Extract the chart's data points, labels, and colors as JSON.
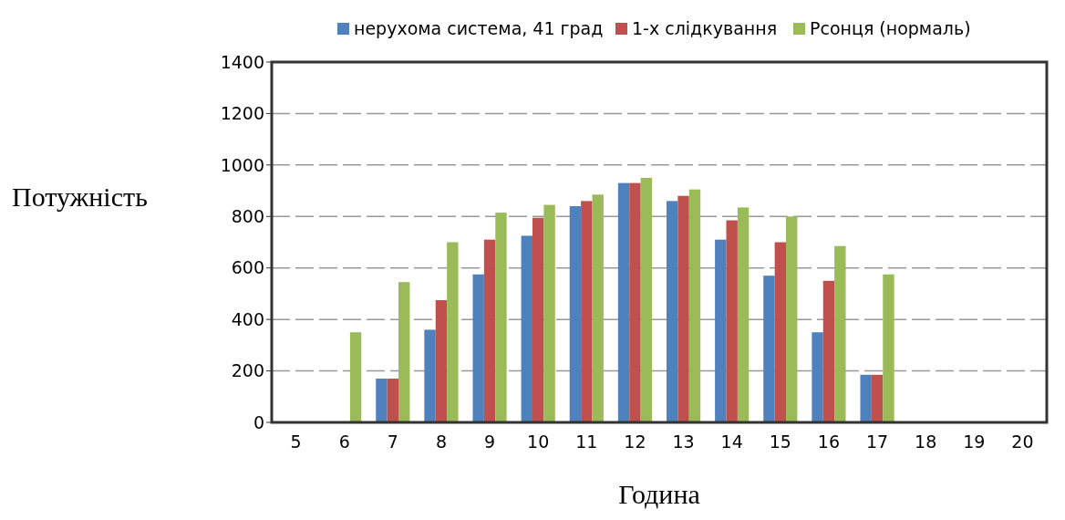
{
  "chart_data": {
    "type": "bar",
    "xlabel": "Година",
    "ylabel": "Потужність",
    "categories": [
      "5",
      "6",
      "7",
      "8",
      "9",
      "10",
      "11",
      "12",
      "13",
      "14",
      "15",
      "16",
      "17",
      "18",
      "19",
      "20"
    ],
    "series": [
      {
        "name": "нерухома система, 41 град",
        "color": "#4f81bd",
        "values": [
          0,
          0,
          170,
          360,
          575,
          725,
          840,
          930,
          860,
          710,
          570,
          350,
          185,
          0,
          0,
          0
        ]
      },
      {
        "name": "1-х слідкування",
        "color": "#c0504d",
        "values": [
          0,
          0,
          170,
          475,
          710,
          795,
          860,
          930,
          880,
          785,
          700,
          550,
          185,
          0,
          0,
          0
        ]
      },
      {
        "name": "Pсонця (нормаль)",
        "color": "#9bbb59",
        "values": [
          0,
          350,
          545,
          700,
          815,
          845,
          885,
          950,
          905,
          835,
          800,
          685,
          575,
          0,
          0,
          0
        ]
      }
    ],
    "ylim": [
      0,
      1400
    ],
    "yticks": [
      0,
      200,
      400,
      600,
      800,
      1000,
      1200,
      1400
    ],
    "grid": "y",
    "legend": "top"
  }
}
